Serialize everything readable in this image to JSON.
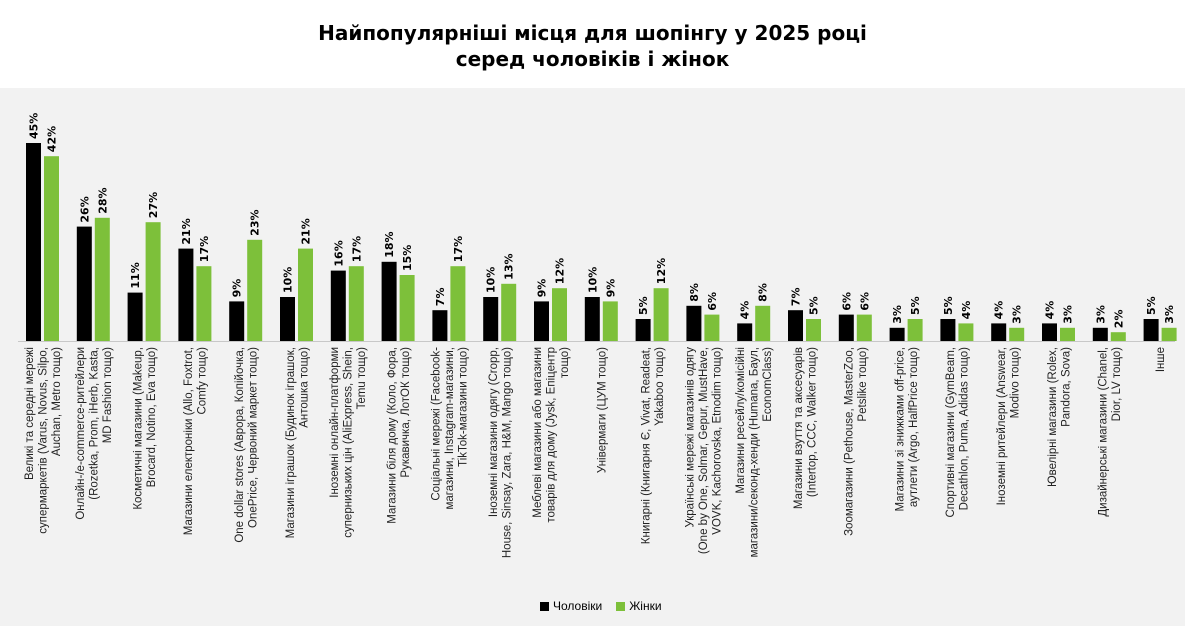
{
  "title_line1": "Найпопулярніші місця для шопінгу у 2025 році",
  "title_line2": "серед чоловіків і жінок",
  "colors": {
    "men": "#000000",
    "women": "#7dc03a",
    "background": "#f2f2f2"
  },
  "chart_data": {
    "type": "bar",
    "title": "Найпопулярніші місця для шопінгу у 2025 році серед чоловіків і жінок",
    "value_suffix": "%",
    "ylim": [
      0,
      45
    ],
    "legend_position": "bottom",
    "grid": false,
    "categories": [
      [
        "Великі та середні мережі",
        "супермаркетів (Varus, Novus, Silpo,",
        "Auchan, Metro тощо)"
      ],
      [
        "Онлайн-/е-commerce-ритейлери",
        "(Rozetka, Prom, iHerb, Kasta,",
        "MD Fashion тощо)"
      ],
      [
        "Косметичні магазини (Makeup,",
        "Brocard, Notino, Eva тощо)"
      ],
      [
        "Магазини електроніки (Allo, Foxtrot,",
        "Comfy тощо)"
      ],
      [
        "One dollar stores (Аврора, Копійочка,",
        "OnePrice, Червоний маркет тощо)"
      ],
      [
        "Магазини іграшок (Будинок іграшок,",
        "Антошка тощо)"
      ],
      [
        "Іноземні онлайн-платформи",
        "супернизьких цін (AliExpress, Shein,",
        "Temu тощо)"
      ],
      [
        "Магазини біля дому (Коло, Фора,",
        "Рукавичка, ЛотОК тощо)"
      ],
      [
        "Соціальні мережі (Facebook-",
        "магазини, Instagram-магазини,",
        "TikTok-магазини тощо)"
      ],
      [
        "Іноземні магазини одягу (Cropp,",
        "House, Sinsay, Zara, H&M, Mango тощо)"
      ],
      [
        "Меблеві магазини або магазини",
        "товарів для дому (Jysk, Епіцентр",
        "тощо)"
      ],
      [
        "Універмаги (ЦУМ тощо)"
      ],
      [
        "Книгарні (Книгарня Є, Vivat, Readeat,",
        "Yakaboo тощо)"
      ],
      [
        "Українські мережі магазинів одягу",
        "(One by One, Solmar, Gepur, MustHave,",
        "VOVK, Kachorovska, Etnodim тощо)"
      ],
      [
        "Магазини ресейлу/комісійні",
        "магазини/секонд-хенди (Humana, Баул,",
        "EconomClass)"
      ],
      [
        "Магазини взуття та аксесуарів",
        "(Intertop, CCC, Walker тощо)"
      ],
      [
        "Зоомагазини (Pethouse, MasterZoo,",
        "Petslike тощо)"
      ],
      [
        "Магазини зі знижками off-price,",
        "аутлети (Argo, HalfPrice тощо)"
      ],
      [
        "Спортивні магазини (GymBeam,",
        "Decathlon, Puma, Adidas тощо)"
      ],
      [
        "Іноземні ритейлери (Answear,",
        "Modivo тощо)"
      ],
      [
        "Ювелірні магазини (Rolex,",
        "Pandora, Sova)"
      ],
      [
        "Дизайнерські магазини (Chanel,",
        "Dior, LV тощо)"
      ],
      [
        "Інше"
      ]
    ],
    "series": [
      {
        "name": "Чоловіки",
        "values": [
          45,
          26,
          11,
          21,
          9,
          10,
          16,
          18,
          7,
          10,
          9,
          10,
          5,
          8,
          4,
          7,
          6,
          3,
          5,
          4,
          4,
          3,
          5
        ]
      },
      {
        "name": "Жінки",
        "values": [
          42,
          28,
          27,
          17,
          23,
          21,
          17,
          15,
          17,
          13,
          12,
          9,
          12,
          6,
          8,
          5,
          6,
          5,
          4,
          3,
          3,
          2,
          3
        ]
      }
    ]
  }
}
